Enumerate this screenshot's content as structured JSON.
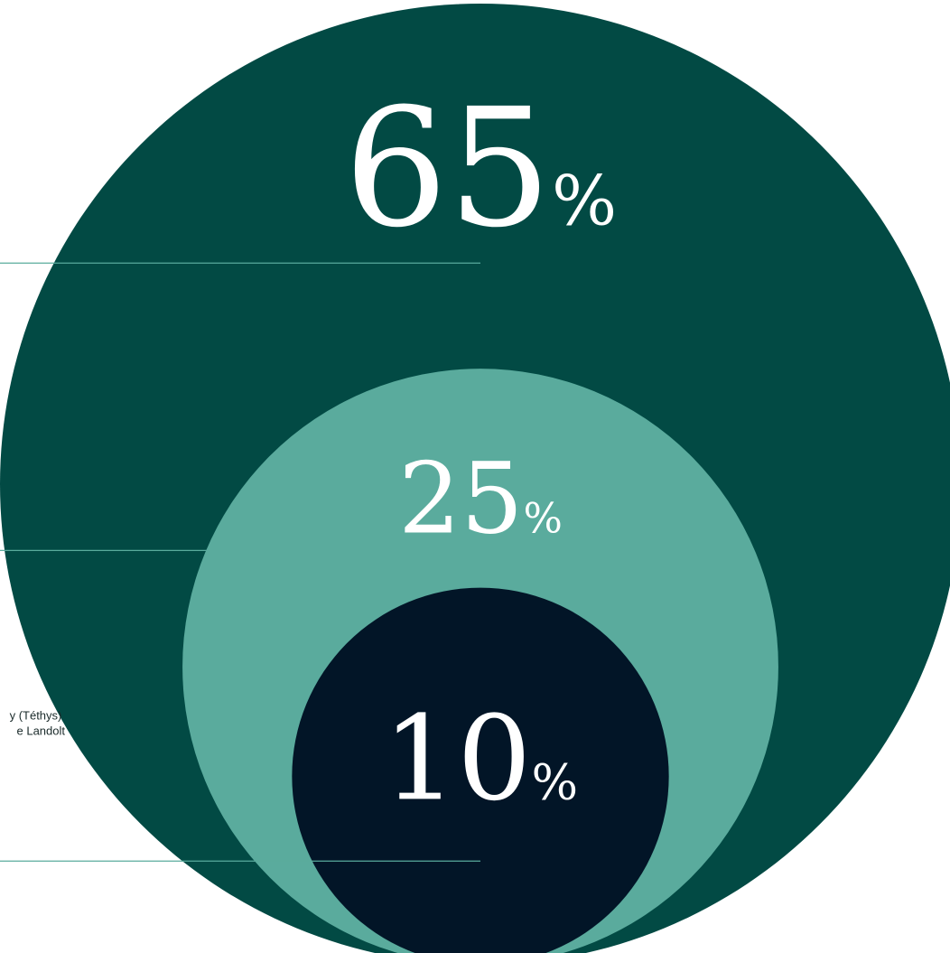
{
  "chart_data": {
    "type": "nested-bubble",
    "segments": [
      {
        "value": 65,
        "value_label": "65",
        "unit": "%",
        "color": "#024a44"
      },
      {
        "value": 25,
        "value_label": "25",
        "unit": "%",
        "color": "#5aab9d"
      },
      {
        "value": 10,
        "value_label": "10",
        "unit": "%",
        "color": "#021527"
      }
    ],
    "leader_line_color": "#5aab9d",
    "label_color": "#ffffff",
    "annotation": {
      "lines": [
        "y (Téthys)",
        "e Landolt"
      ]
    }
  }
}
